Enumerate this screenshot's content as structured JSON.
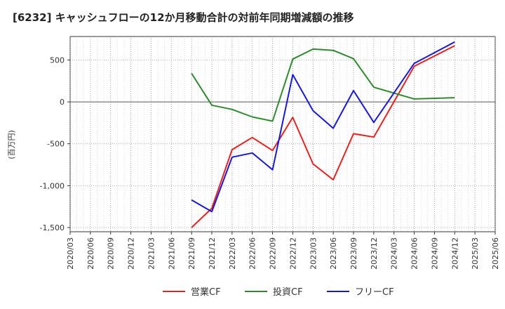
{
  "chart_data": {
    "type": "line",
    "title": "[6232]  キャッシュフローの12か月移動合計の対前年同期増減額の推移",
    "ylabel": "(百万円)",
    "xlabel": "",
    "ylim": [
      -1550,
      780
    ],
    "yticks": [
      500,
      0,
      -500,
      -1000,
      -1500
    ],
    "ytick_labels": [
      "500",
      "0",
      "-500",
      "-1,000",
      "-1,500"
    ],
    "x_ticks": [
      "2020/03",
      "2020/06",
      "2020/09",
      "2020/12",
      "2021/03",
      "2021/06",
      "2021/09",
      "2021/12",
      "2022/03",
      "2022/06",
      "2022/09",
      "2022/12",
      "2023/03",
      "2023/06",
      "2023/09",
      "2023/12",
      "2024/03",
      "2024/06",
      "2024/09",
      "2024/12",
      "2025/03",
      "2025/06"
    ],
    "grid": true,
    "legend_position": "bottom",
    "series": [
      {
        "name": "営業CF",
        "color": "#e8201e",
        "x": [
          "2021/09",
          "2021/12",
          "2022/03",
          "2022/06",
          "2022/09",
          "2022/12",
          "2023/03",
          "2023/06",
          "2023/09",
          "2023/12",
          "2024/06",
          "2024/12"
        ],
        "values": [
          -1500,
          -1270,
          -570,
          -425,
          -580,
          -185,
          -740,
          -930,
          -380,
          -420,
          425,
          670
        ]
      },
      {
        "name": "投資CF",
        "color": "#2f8a2f",
        "x": [
          "2021/09",
          "2021/12",
          "2022/03",
          "2022/06",
          "2022/09",
          "2022/12",
          "2023/03",
          "2023/06",
          "2023/09",
          "2023/12",
          "2024/06",
          "2024/12"
        ],
        "values": [
          340,
          -40,
          -90,
          -180,
          -230,
          510,
          630,
          615,
          515,
          175,
          35,
          50
        ]
      },
      {
        "name": "フリーCF",
        "color": "#1818d8",
        "x": [
          "2021/09",
          "2021/12",
          "2022/03",
          "2022/06",
          "2022/09",
          "2022/12",
          "2023/03",
          "2023/06",
          "2023/09",
          "2023/12",
          "2024/06",
          "2024/12"
        ],
        "values": [
          -1170,
          -1310,
          -660,
          -610,
          -810,
          325,
          -105,
          -315,
          135,
          -245,
          460,
          715
        ]
      }
    ]
  }
}
